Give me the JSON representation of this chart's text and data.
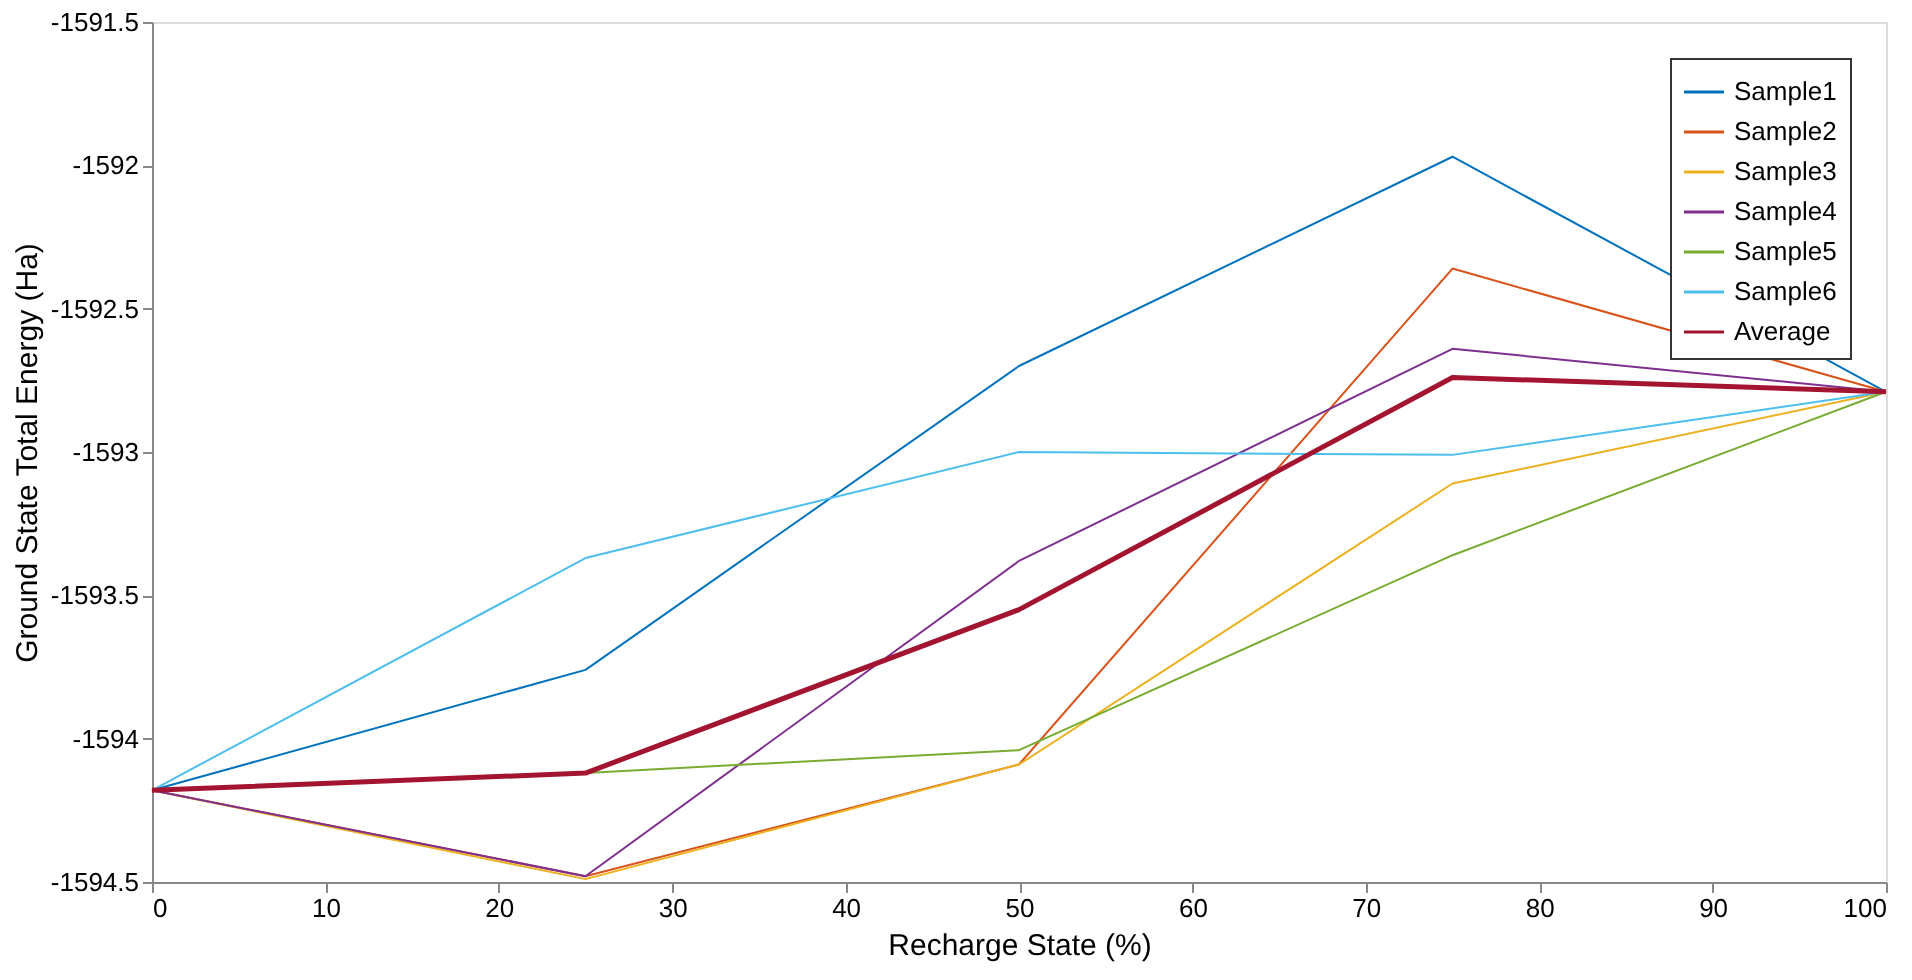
{
  "chart_data": {
    "type": "line",
    "xlabel": "Recharge State (%)",
    "ylabel": "Ground State Total Energy (Ha)",
    "x": [
      0,
      25,
      50,
      75,
      100
    ],
    "series": [
      {
        "name": "Sample1",
        "color": "#0072bd",
        "values": [
          -1594.18,
          -1593.76,
          -1592.7,
          -1591.97,
          -1592.79
        ]
      },
      {
        "name": "Sample2",
        "color": "#d95319",
        "values": [
          -1594.18,
          -1594.48,
          -1594.09,
          -1592.36,
          -1592.79
        ]
      },
      {
        "name": "Sample3",
        "color": "#edb120",
        "values": [
          -1594.18,
          -1594.49,
          -1594.09,
          -1593.11,
          -1592.79
        ]
      },
      {
        "name": "Sample4",
        "color": "#7e2f8e",
        "values": [
          -1594.18,
          -1594.48,
          -1593.38,
          -1592.64,
          -1592.79
        ]
      },
      {
        "name": "Sample5",
        "color": "#77ac30",
        "values": [
          -1594.18,
          -1594.12,
          -1594.04,
          -1593.36,
          -1592.79
        ]
      },
      {
        "name": "Sample6",
        "color": "#4dbeee",
        "values": [
          -1594.18,
          -1593.37,
          -1593.0,
          -1593.01,
          -1592.79
        ]
      },
      {
        "name": "Average",
        "color": "#a2142f",
        "values": [
          -1594.18,
          -1594.12,
          -1593.55,
          -1592.74,
          -1592.79
        ]
      }
    ],
    "xlim": [
      0,
      100
    ],
    "xticks": [
      0,
      10,
      20,
      30,
      40,
      50,
      60,
      70,
      80,
      90,
      100
    ],
    "ylim": [
      -1594.5,
      -1591.5
    ],
    "yticks": [
      -1594.5,
      -1594,
      -1593.5,
      -1593,
      -1592.5,
      -1592,
      -1591.5
    ],
    "grid": false,
    "legend": "top right",
    "marker": "none",
    "line_style": "solid"
  }
}
